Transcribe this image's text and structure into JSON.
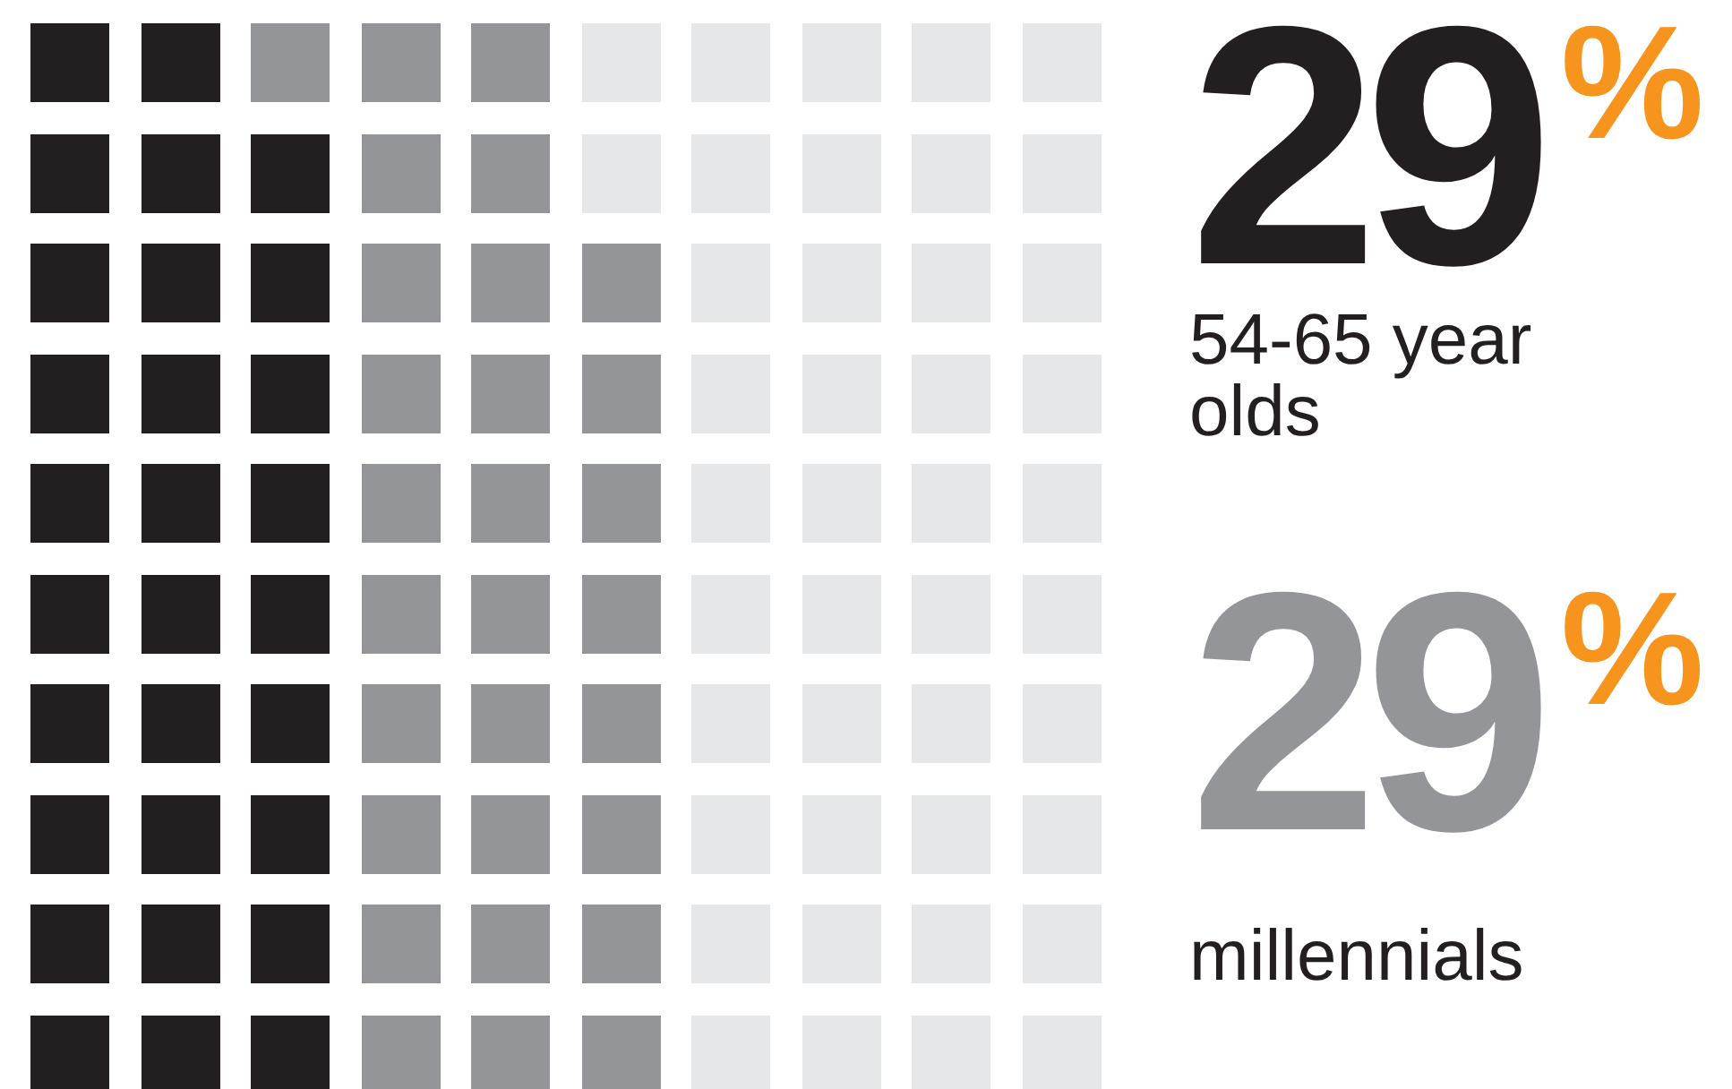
{
  "chart_data": {
    "type": "other",
    "categories": [
      "54-65 year olds",
      "millennials"
    ],
    "values": [
      29,
      29
    ],
    "value_labels": [
      "29%",
      "29%"
    ],
    "colors": [
      "#231f20",
      "#939598"
    ]
  }
}
